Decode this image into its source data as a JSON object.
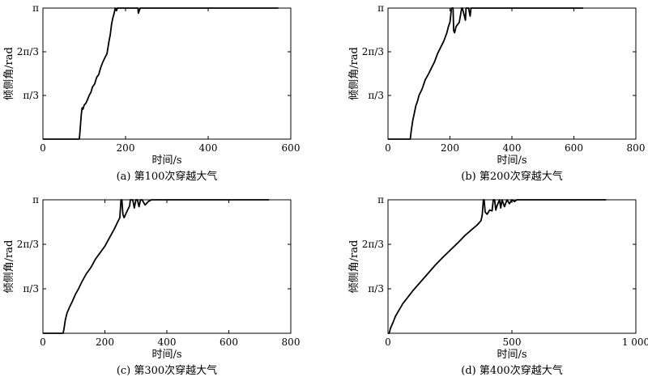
{
  "chart_data": [
    {
      "type": "line",
      "caption": "(a) 第100次穿越大气",
      "xlabel": "时间/s",
      "ylabel": "倾侧角/rad",
      "xlim": [
        0,
        600
      ],
      "ylim": [
        0,
        3.14159
      ],
      "x_ticks": [
        0,
        200,
        400,
        600
      ],
      "x_tick_labels": [
        "0",
        "200",
        "400",
        "600"
      ],
      "y_ticks": [
        1.0472,
        2.0944,
        3.14159
      ],
      "y_tick_labels": [
        "π/3",
        "2π/3",
        "π"
      ],
      "grid": false,
      "series": [
        {
          "x": [
            0,
            88,
            89,
            91,
            93,
            95,
            97,
            100,
            104,
            108,
            112,
            116,
            120,
            125,
            130,
            135,
            140,
            145,
            150,
            155,
            160,
            163,
            166,
            169,
            172,
            175,
            178,
            180,
            230,
            231,
            234,
            236,
            570
          ],
          "y": [
            0,
            0,
            0.1,
            0.35,
            0.6,
            0.75,
            0.72,
            0.82,
            0.86,
            0.95,
            1.05,
            1.12,
            1.25,
            1.32,
            1.48,
            1.55,
            1.72,
            1.85,
            1.95,
            2.05,
            2.35,
            2.5,
            2.75,
            2.9,
            3.0,
            3.14159,
            3.08,
            3.14159,
            3.14159,
            3.02,
            3.1,
            3.14159,
            3.14159
          ]
        }
      ]
    },
    {
      "type": "line",
      "caption": "(b) 第200次穿越大气",
      "xlabel": "时间/s",
      "ylabel": "倾侧角/rad",
      "xlim": [
        0,
        800
      ],
      "ylim": [
        0,
        3.14159
      ],
      "x_ticks": [
        0,
        200,
        400,
        600,
        800
      ],
      "x_tick_labels": [
        "0",
        "200",
        "400",
        "600",
        "800"
      ],
      "y_ticks": [
        1.0472,
        2.0944,
        3.14159
      ],
      "y_tick_labels": [
        "π/3",
        "2π/3",
        "π"
      ],
      "grid": false,
      "series": [
        {
          "x": [
            0,
            72,
            75,
            80,
            85,
            90,
            95,
            100,
            110,
            120,
            130,
            140,
            150,
            160,
            170,
            180,
            190,
            195,
            200,
            205,
            210,
            212,
            215,
            220,
            230,
            238,
            240,
            245,
            250,
            252,
            260,
            265,
            268,
            270,
            630
          ],
          "y": [
            0,
            0,
            0.2,
            0.45,
            0.62,
            0.8,
            0.9,
            1.05,
            1.2,
            1.42,
            1.55,
            1.7,
            1.85,
            2.05,
            2.2,
            2.35,
            2.55,
            2.7,
            2.8,
            3.14159,
            3.14159,
            2.6,
            2.55,
            2.7,
            2.8,
            3.14159,
            3.14159,
            3.0,
            2.85,
            3.14159,
            3.14159,
            2.95,
            3.14159,
            3.14159,
            3.14159
          ]
        }
      ]
    },
    {
      "type": "line",
      "caption": "(c) 第300次穿越大气",
      "xlabel": "时间/s",
      "ylabel": "倾侧角/rad",
      "xlim": [
        0,
        800
      ],
      "ylim": [
        0,
        3.14159
      ],
      "x_ticks": [
        0,
        200,
        400,
        600,
        800
      ],
      "x_tick_labels": [
        "0",
        "200",
        "400",
        "600",
        "800"
      ],
      "y_ticks": [
        1.0472,
        2.0944,
        3.14159
      ],
      "y_tick_labels": [
        "π/3",
        "2π/3",
        "π"
      ],
      "grid": false,
      "series": [
        {
          "x": [
            0,
            65,
            68,
            72,
            78,
            85,
            95,
            105,
            115,
            125,
            140,
            155,
            170,
            185,
            200,
            215,
            230,
            240,
            248,
            252,
            255,
            258,
            262,
            270,
            280,
            282,
            290,
            295,
            300,
            305,
            310,
            315,
            320,
            330,
            340,
            350,
            360,
            365,
            730
          ],
          "y": [
            0,
            0,
            0.1,
            0.3,
            0.48,
            0.6,
            0.75,
            0.92,
            1.05,
            1.2,
            1.4,
            1.55,
            1.75,
            1.9,
            2.05,
            2.25,
            2.45,
            2.6,
            2.72,
            3.14159,
            3.14159,
            2.8,
            2.72,
            2.85,
            3.0,
            3.14159,
            3.14159,
            2.95,
            3.14159,
            3.14159,
            2.98,
            3.14159,
            3.14159,
            3.02,
            3.1,
            3.14159,
            3.14159,
            3.14159,
            3.14159
          ]
        }
      ]
    },
    {
      "type": "line",
      "caption": "(d) 第400次穿越大气",
      "xlabel": "时间/s",
      "ylabel": "倾侧角/rad",
      "xlim": [
        0,
        1000
      ],
      "ylim": [
        0,
        3.14159
      ],
      "x_ticks": [
        0,
        500,
        1000
      ],
      "x_tick_labels": [
        "0",
        "500",
        "1 000"
      ],
      "y_ticks": [
        1.0472,
        2.0944,
        3.14159
      ],
      "y_tick_labels": [
        "π/3",
        "2π/3",
        "π"
      ],
      "grid": false,
      "series": [
        {
          "x": [
            0,
            5,
            10,
            20,
            30,
            45,
            60,
            80,
            100,
            130,
            160,
            190,
            220,
            250,
            280,
            310,
            340,
            360,
            375,
            380,
            385,
            388,
            392,
            400,
            410,
            420,
            425,
            430,
            435,
            440,
            450,
            455,
            460,
            470,
            480,
            490,
            500,
            510,
            520,
            550,
            600,
            880
          ],
          "y": [
            0,
            0,
            0.12,
            0.25,
            0.4,
            0.55,
            0.7,
            0.85,
            1.0,
            1.2,
            1.4,
            1.6,
            1.78,
            1.95,
            2.12,
            2.3,
            2.45,
            2.55,
            2.65,
            2.78,
            3.14159,
            3.14159,
            2.85,
            2.8,
            2.9,
            2.88,
            3.14159,
            3.14159,
            2.9,
            3.0,
            3.14159,
            2.95,
            3.14159,
            2.98,
            3.14159,
            3.05,
            3.14159,
            3.1,
            3.14159,
            3.14159,
            3.14159,
            3.14159
          ]
        }
      ]
    }
  ]
}
